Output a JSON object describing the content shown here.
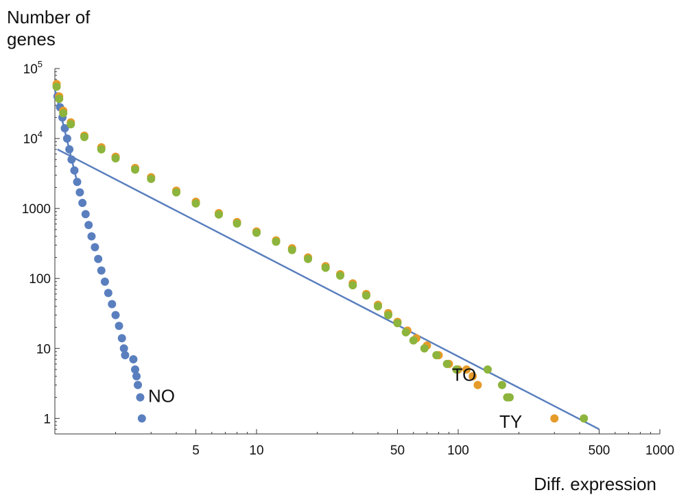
{
  "chart_data": {
    "type": "scatter",
    "x_scale": "log",
    "y_scale": "log",
    "xlabel": "Diff. expression",
    "ylabel_lines": [
      "Number of",
      "genes"
    ],
    "xlim": [
      1,
      1000
    ],
    "ylim": [
      0.6,
      100000
    ],
    "grid": false,
    "legend": "none",
    "x_ticks": [
      {
        "value": 5,
        "label": "5"
      },
      {
        "value": 10,
        "label": "10"
      },
      {
        "value": 50,
        "label": "50"
      },
      {
        "value": 100,
        "label": "100"
      },
      {
        "value": 500,
        "label": "500"
      },
      {
        "value": 1000,
        "label": "1000"
      }
    ],
    "y_ticks": [
      {
        "value": 1,
        "label": "1"
      },
      {
        "value": 10,
        "label": "10"
      },
      {
        "value": 100,
        "label": "100"
      },
      {
        "value": 1000,
        "label": "1000"
      },
      {
        "value": 10000,
        "label": "10",
        "exponent": "4"
      },
      {
        "value": 100000,
        "label": "10",
        "exponent": "5"
      }
    ],
    "series": [
      {
        "label": "NO",
        "color": "#5a7fbe",
        "label_anchor": [
          2.9,
          2.1
        ],
        "points": [
          [
            1.03,
            40000
          ],
          [
            1.06,
            28000
          ],
          [
            1.09,
            20000
          ],
          [
            1.12,
            14000
          ],
          [
            1.15,
            10000
          ],
          [
            1.18,
            7000
          ],
          [
            1.21,
            5000
          ],
          [
            1.25,
            3500
          ],
          [
            1.29,
            2400
          ],
          [
            1.33,
            1700
          ],
          [
            1.37,
            1200
          ],
          [
            1.42,
            830
          ],
          [
            1.47,
            580
          ],
          [
            1.52,
            400
          ],
          [
            1.58,
            280
          ],
          [
            1.64,
            190
          ],
          [
            1.7,
            130
          ],
          [
            1.77,
            90
          ],
          [
            1.84,
            62
          ],
          [
            1.92,
            43
          ],
          [
            2.0,
            30
          ],
          [
            2.08,
            21
          ],
          [
            2.15,
            14
          ],
          [
            2.2,
            10
          ],
          [
            2.23,
            8
          ],
          [
            2.45,
            7
          ],
          [
            2.5,
            5
          ],
          [
            2.54,
            4
          ],
          [
            2.58,
            3
          ],
          [
            2.65,
            2
          ],
          [
            2.7,
            1
          ]
        ]
      },
      {
        "label": "TO",
        "color": "#e59b2a",
        "label_anchor": [
          93,
          4.2
        ],
        "points": [
          [
            1.02,
            60000
          ],
          [
            1.05,
            40000
          ],
          [
            1.1,
            25000
          ],
          [
            1.2,
            17000
          ],
          [
            1.4,
            11000
          ],
          [
            1.7,
            7500
          ],
          [
            2.0,
            5500
          ],
          [
            2.5,
            3800
          ],
          [
            3.0,
            2800
          ],
          [
            4.0,
            1800
          ],
          [
            5.0,
            1250
          ],
          [
            6.5,
            860
          ],
          [
            8.0,
            640
          ],
          [
            10.0,
            470
          ],
          [
            12.5,
            350
          ],
          [
            15.0,
            270
          ],
          [
            18.0,
            200
          ],
          [
            22.0,
            150
          ],
          [
            26.0,
            115
          ],
          [
            30.0,
            85
          ],
          [
            35.0,
            60
          ],
          [
            40.0,
            42
          ],
          [
            45.0,
            32
          ],
          [
            50.0,
            24
          ],
          [
            56.0,
            18
          ],
          [
            62.0,
            14
          ],
          [
            70.0,
            11
          ],
          [
            80.0,
            8
          ],
          [
            90.0,
            6
          ],
          [
            100.0,
            5
          ],
          [
            110.0,
            5
          ],
          [
            118.0,
            4
          ],
          [
            125.0,
            3
          ],
          [
            300.0,
            1
          ]
        ]
      },
      {
        "label": "TY",
        "color": "#8db43c",
        "label_anchor": [
          160,
          0.9
        ],
        "points": [
          [
            1.02,
            55000
          ],
          [
            1.05,
            37000
          ],
          [
            1.1,
            23000
          ],
          [
            1.2,
            16000
          ],
          [
            1.4,
            10500
          ],
          [
            1.7,
            7000
          ],
          [
            2.0,
            5200
          ],
          [
            2.5,
            3600
          ],
          [
            3.0,
            2650
          ],
          [
            4.0,
            1700
          ],
          [
            5.0,
            1180
          ],
          [
            6.5,
            820
          ],
          [
            8.0,
            610
          ],
          [
            10.0,
            450
          ],
          [
            12.5,
            335
          ],
          [
            15.0,
            255
          ],
          [
            18.0,
            190
          ],
          [
            22.0,
            142
          ],
          [
            26.0,
            110
          ],
          [
            30.0,
            80
          ],
          [
            35.0,
            57
          ],
          [
            40.0,
            40
          ],
          [
            45.0,
            30
          ],
          [
            50.0,
            23
          ],
          [
            55.0,
            17
          ],
          [
            60.0,
            13
          ],
          [
            68.0,
            10
          ],
          [
            78.0,
            8
          ],
          [
            88.0,
            6
          ],
          [
            98.0,
            5
          ],
          [
            140.0,
            5
          ],
          [
            165.0,
            3
          ],
          [
            175.0,
            2
          ],
          [
            180.0,
            2
          ],
          [
            420.0,
            1
          ]
        ]
      }
    ],
    "fit_line": {
      "color": "#5a7fbe",
      "points": [
        [
          1.03,
          7000
        ],
        [
          500,
          0.7
        ]
      ]
    },
    "steep_line": {
      "color": "#5a7fbe",
      "points": [
        [
          1.0,
          50000
        ],
        [
          1.28,
          2600
        ]
      ]
    }
  }
}
